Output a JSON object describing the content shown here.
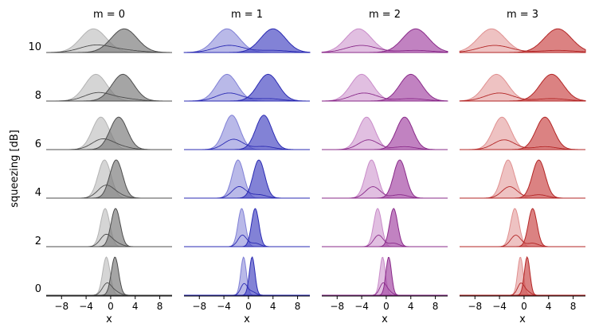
{
  "chart_data": {
    "type": "area",
    "layout": "small-multiples grid: 6 rows (squeezing) x 4 columns (m)",
    "column_titles": [
      "m = 0",
      "m = 1",
      "m = 2",
      "m = 3"
    ],
    "ylabel": "squeezing [dB]",
    "xlabel": "x",
    "row_labels": [
      "10",
      "8",
      "6",
      "4",
      "2",
      "0"
    ],
    "squeezing_db": [
      10,
      8,
      6,
      4,
      2,
      0
    ],
    "x_ticks": [
      "−8",
      "−4",
      "0",
      "4",
      "8"
    ],
    "x_tick_values": [
      -8,
      -4,
      0,
      4,
      8
    ],
    "xlim": [
      -10.5,
      10
    ],
    "column_colors": {
      "m = 0": {
        "dark": "#4d4d4d",
        "light": "#b3b3b3",
        "fill": "#7f7f7f"
      },
      "m = 1": {
        "dark": "#2b2bb3",
        "light": "#8080d6",
        "fill": "#4d4dc4"
      },
      "m = 2": {
        "dark": "#8a2b8a",
        "light": "#c98bc9",
        "fill": "#a64da6"
      },
      "m = 3": {
        "dark": "#b32626",
        "light": "#e09090",
        "fill": "#cc4d4d"
      }
    },
    "series_description": "each panel: two overlapping filled distributions (left, light; right, dark) over x",
    "panels": {
      "m0": [
        {
          "db": 10,
          "left_center": -2.8,
          "right_center": 2.2,
          "width": 2.1,
          "peak": 0.62
        },
        {
          "db": 8,
          "left_center": -2.4,
          "right_center": 2.0,
          "width": 1.8,
          "peak": 0.7
        },
        {
          "db": 6,
          "left_center": -1.6,
          "right_center": 1.3,
          "width": 1.4,
          "peak": 0.85
        },
        {
          "db": 4,
          "left_center": -1.0,
          "right_center": 0.9,
          "width": 1.05,
          "peak": 1.0
        },
        {
          "db": 2,
          "left_center": -0.9,
          "right_center": 0.8,
          "width": 0.75,
          "peak": 1.0
        },
        {
          "db": 0,
          "left_center": -0.7,
          "right_center": 0.7,
          "width": 0.6,
          "peak": 1.0
        }
      ],
      "m1": [
        {
          "db": 10,
          "left_center": -3.5,
          "right_center": 4.0,
          "width": 2.0,
          "peak": 0.62
        },
        {
          "db": 8,
          "left_center": -3.5,
          "right_center": 3.2,
          "width": 1.7,
          "peak": 0.7
        },
        {
          "db": 6,
          "left_center": -2.7,
          "right_center": 2.5,
          "width": 1.3,
          "peak": 0.9
        },
        {
          "db": 4,
          "left_center": -1.7,
          "right_center": 1.7,
          "width": 0.95,
          "peak": 1.0
        },
        {
          "db": 2,
          "left_center": -1.1,
          "right_center": 1.1,
          "width": 0.6,
          "peak": 1.0
        },
        {
          "db": 0,
          "left_center": -0.8,
          "right_center": 0.6,
          "width": 0.45,
          "peak": 1.0
        }
      ],
      "m2": [
        {
          "db": 10,
          "left_center": -4.5,
          "right_center": 4.8,
          "width": 2.1,
          "peak": 0.62
        },
        {
          "db": 8,
          "left_center": -4.0,
          "right_center": 4.0,
          "width": 1.8,
          "peak": 0.7
        },
        {
          "db": 6,
          "left_center": -3.2,
          "right_center": 3.0,
          "width": 1.35,
          "peak": 0.85
        },
        {
          "db": 4,
          "left_center": -2.4,
          "right_center": 2.2,
          "width": 1.0,
          "peak": 1.0
        },
        {
          "db": 2,
          "left_center": -1.4,
          "right_center": 1.2,
          "width": 0.65,
          "peak": 1.0
        },
        {
          "db": 0,
          "left_center": -0.6,
          "right_center": 0.4,
          "width": 0.45,
          "peak": 1.0
        }
      ],
      "m3": [
        {
          "db": 10,
          "left_center": -5.3,
          "right_center": 5.5,
          "width": 2.2,
          "peak": 0.62
        },
        {
          "db": 8,
          "left_center": -4.5,
          "right_center": 4.5,
          "width": 1.9,
          "peak": 0.7
        },
        {
          "db": 6,
          "left_center": -3.6,
          "right_center": 3.4,
          "width": 1.45,
          "peak": 0.85
        },
        {
          "db": 4,
          "left_center": -2.6,
          "right_center": 2.4,
          "width": 1.05,
          "peak": 1.0
        },
        {
          "db": 2,
          "left_center": -1.5,
          "right_center": 1.4,
          "width": 0.7,
          "peak": 1.0
        },
        {
          "db": 0,
          "left_center": -0.6,
          "right_center": 0.5,
          "width": 0.45,
          "peak": 1.0
        }
      ]
    }
  }
}
